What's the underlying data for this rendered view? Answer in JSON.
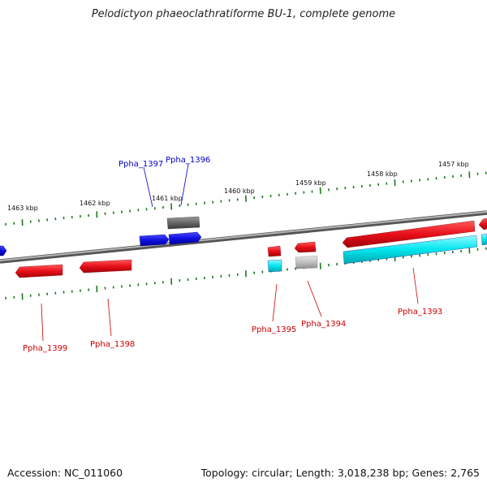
{
  "title": "Pelodictyon phaeoclathratiforme BU-1, complete genome",
  "footer": {
    "accession": "Accession: NC_011060",
    "summary": "Topology: circular; Length: 3,018,238 bp; Genes: 2,765"
  },
  "colors": {
    "forward_gene": "#e8101a",
    "highlight_gene": "#1010e0",
    "rna_gene": "#666666",
    "cds_track": "#00e5ee",
    "pseudo_track": "#c0c0c0",
    "tick": "#1a7a1a",
    "backbone": "#888888",
    "label_red": "#cc0000",
    "label_blue": "#0000cc"
  },
  "kbp_labels": [
    "1463 kbp",
    "1462 kbp",
    "1461 kbp",
    "1460 kbp",
    "1459 kbp",
    "1458 kbp",
    "1457 kbp"
  ],
  "gene_labels": [
    {
      "id": "Ppha_1399",
      "color": "red"
    },
    {
      "id": "Ppha_1398",
      "color": "red"
    },
    {
      "id": "Ppha_1397",
      "color": "blue"
    },
    {
      "id": "Ppha_1396",
      "color": "blue"
    },
    {
      "id": "Ppha_1395",
      "color": "red"
    },
    {
      "id": "Ppha_1394",
      "color": "red"
    },
    {
      "id": "Ppha_1393",
      "color": "red"
    }
  ]
}
